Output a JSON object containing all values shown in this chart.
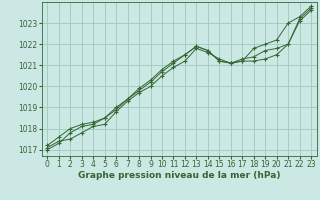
{
  "bg_color": "#cce8e4",
  "grid_color": "#99ccbb",
  "line_color": "#336633",
  "xlabel": "Graphe pression niveau de la mer (hPa)",
  "ylim": [
    1016.7,
    1024.0
  ],
  "xlim": [
    -0.5,
    23.5
  ],
  "yticks": [
    1017,
    1018,
    1019,
    1020,
    1021,
    1022,
    1023
  ],
  "xticks": [
    0,
    1,
    2,
    3,
    4,
    5,
    6,
    7,
    8,
    9,
    10,
    11,
    12,
    13,
    14,
    15,
    16,
    17,
    18,
    19,
    20,
    21,
    22,
    23
  ],
  "series": [
    [
      1017.1,
      1017.4,
      1017.5,
      1017.8,
      1018.1,
      1018.2,
      1018.8,
      1019.3,
      1019.7,
      1020.0,
      1020.5,
      1020.9,
      1021.2,
      1021.8,
      1021.6,
      1021.3,
      1021.1,
      1021.2,
      1021.8,
      1022.0,
      1022.2,
      1023.0,
      1023.3,
      1023.8
    ],
    [
      1017.2,
      1017.6,
      1018.0,
      1018.2,
      1018.3,
      1018.5,
      1018.9,
      1019.4,
      1019.8,
      1020.2,
      1020.7,
      1021.1,
      1021.5,
      1021.9,
      1021.7,
      1021.2,
      1021.1,
      1021.2,
      1021.2,
      1021.3,
      1021.5,
      1022.0,
      1023.1,
      1023.6
    ],
    [
      1017.0,
      1017.3,
      1017.8,
      1018.1,
      1018.2,
      1018.5,
      1019.0,
      1019.4,
      1019.9,
      1020.3,
      1020.8,
      1021.2,
      1021.5,
      1021.9,
      1021.7,
      1021.2,
      1021.1,
      1021.3,
      1021.4,
      1021.7,
      1021.8,
      1022.0,
      1023.2,
      1023.7
    ]
  ],
  "tick_fontsize": 5.5,
  "xlabel_fontsize": 6.5,
  "xlabel_fontweight": "bold"
}
